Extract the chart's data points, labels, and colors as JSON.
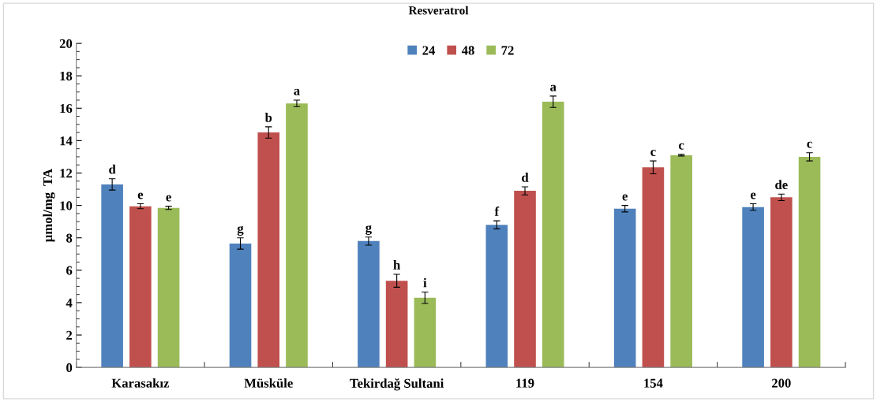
{
  "chart_data": {
    "type": "bar",
    "title": "Resveratrol",
    "ylabel": "µmol/mg  TA",
    "categories": [
      "Karasakız",
      "Müsküle",
      "Tekirdağ Sultani",
      "119",
      "154",
      "200"
    ],
    "series": [
      {
        "name": "24",
        "color": "#4f81bd",
        "values": [
          11.3,
          7.65,
          7.8,
          8.8,
          9.8,
          9.9
        ],
        "errors": [
          0.35,
          0.35,
          0.25,
          0.25,
          0.2,
          0.2
        ],
        "value_labels": [
          "d",
          "g",
          "g",
          "f",
          "e",
          "e"
        ]
      },
      {
        "name": "48",
        "color": "#c0504d",
        "values": [
          9.95,
          14.5,
          5.35,
          10.9,
          12.35,
          10.5
        ],
        "errors": [
          0.15,
          0.35,
          0.4,
          0.25,
          0.4,
          0.2
        ],
        "value_labels": [
          "e",
          "b",
          "h",
          "d",
          "c",
          "de"
        ]
      },
      {
        "name": "72",
        "color": "#9bbb59",
        "values": [
          9.85,
          16.3,
          4.3,
          16.4,
          13.1,
          13.0
        ],
        "errors": [
          0.1,
          0.2,
          0.35,
          0.35,
          0.05,
          0.25
        ],
        "value_labels": [
          "e",
          "a",
          "i",
          "a",
          "c",
          "c"
        ]
      }
    ],
    "ylim": [
      0,
      20
    ],
    "yticks": [
      0,
      2,
      4,
      6,
      8,
      10,
      12,
      14,
      16,
      18,
      20
    ],
    "grid": false,
    "legend": "top"
  }
}
